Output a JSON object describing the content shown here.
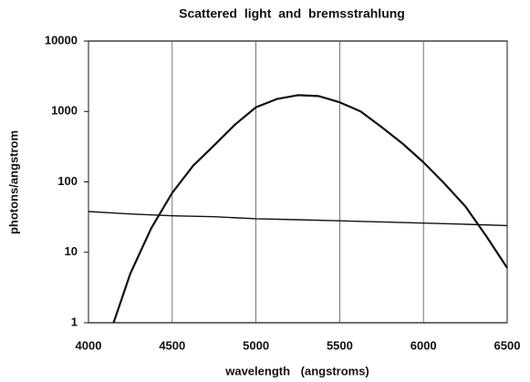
{
  "chart_data": {
    "type": "line",
    "title": "Scattered light and bremsstrahlung",
    "xlabel": "wavelength (angstroms)",
    "ylabel": "photons/angstrom",
    "log_y": true,
    "grid": "x",
    "xlim": [
      4000,
      6500
    ],
    "xticks": [
      4000,
      4500,
      5000,
      5500,
      6000,
      6500
    ],
    "ylim": [
      1,
      10000
    ],
    "yticks": [
      1,
      10,
      100,
      1000,
      10000
    ],
    "series": [
      {
        "color": "#111111",
        "x": [
          4150,
          4250,
          4375,
          4500,
          4625,
          4750,
          4875,
          5000,
          5125,
          5250,
          5375,
          5500,
          5625,
          5750,
          5875,
          6000,
          6125,
          6250,
          6375,
          6500
        ],
        "values": [
          1,
          5,
          22,
          70,
          170,
          330,
          650,
          1150,
          1500,
          1700,
          1650,
          1350,
          1000,
          600,
          350,
          190,
          95,
          45,
          17,
          6
        ]
      },
      {
        "color": "#111111",
        "x": [
          4000,
          4250,
          4500,
          4750,
          5000,
          5250,
          5500,
          5750,
          6000,
          6250,
          6500
        ],
        "values": [
          38,
          35,
          33,
          32,
          30,
          29,
          28,
          27,
          26,
          25,
          24
        ]
      }
    ]
  }
}
